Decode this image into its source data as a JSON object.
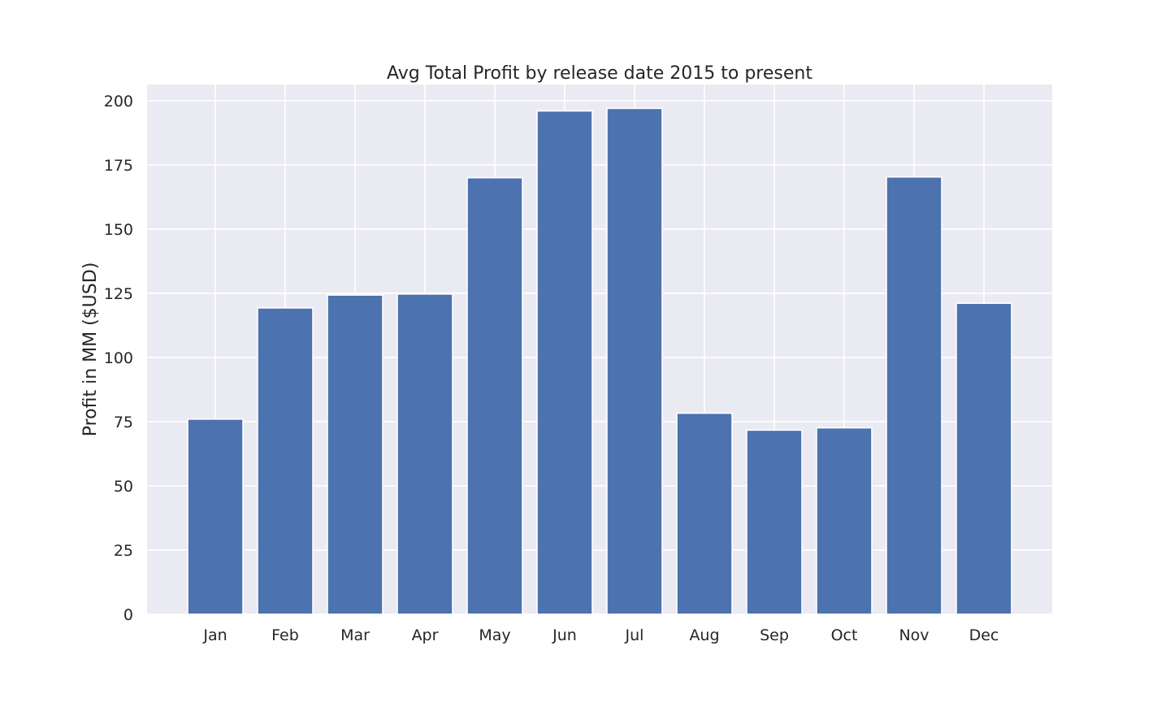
{
  "chart_data": {
    "type": "bar",
    "title": "Avg Total Profit by release date 2015 to present",
    "xlabel": "",
    "ylabel": "Profit in MM ($USD)",
    "categories": [
      "Jan",
      "Feb",
      "Mar",
      "Apr",
      "May",
      "Jun",
      "Jul",
      "Aug",
      "Sep",
      "Oct",
      "Nov",
      "Dec"
    ],
    "values": [
      76.0,
      119.3,
      124.3,
      124.7,
      170.0,
      196.0,
      197.0,
      78.3,
      71.7,
      72.6,
      170.3,
      121.1
    ],
    "ylim": [
      0,
      206.3
    ],
    "yticks": [
      0,
      25,
      50,
      75,
      100,
      125,
      150,
      175,
      200
    ],
    "grid": true,
    "legend": "none",
    "colors": {
      "bar": "#4c72b0",
      "background": "#eaeaf2",
      "grid": "#ffffff",
      "text": "#262626"
    }
  }
}
